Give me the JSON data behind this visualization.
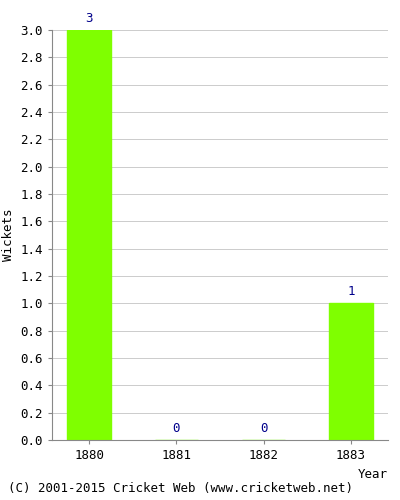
{
  "categories": [
    "1880",
    "1881",
    "1882",
    "1883"
  ],
  "values": [
    3,
    0,
    0,
    1
  ],
  "bar_color": "#7FFF00",
  "label_color": "#00008B",
  "ylabel": "Wickets",
  "xlabel": "Year",
  "ylim": [
    0,
    3.0
  ],
  "yticks": [
    0.0,
    0.2,
    0.4,
    0.6,
    0.8,
    1.0,
    1.2,
    1.4,
    1.6,
    1.8,
    2.0,
    2.2,
    2.4,
    2.6,
    2.8,
    3.0
  ],
  "background_color": "#ffffff",
  "plot_bg_color": "#ffffff",
  "footer": "(C) 2001-2015 Cricket Web (www.cricketweb.net)",
  "label_fontsize": 9,
  "axis_fontsize": 9,
  "footer_fontsize": 9,
  "bar_width": 0.5
}
